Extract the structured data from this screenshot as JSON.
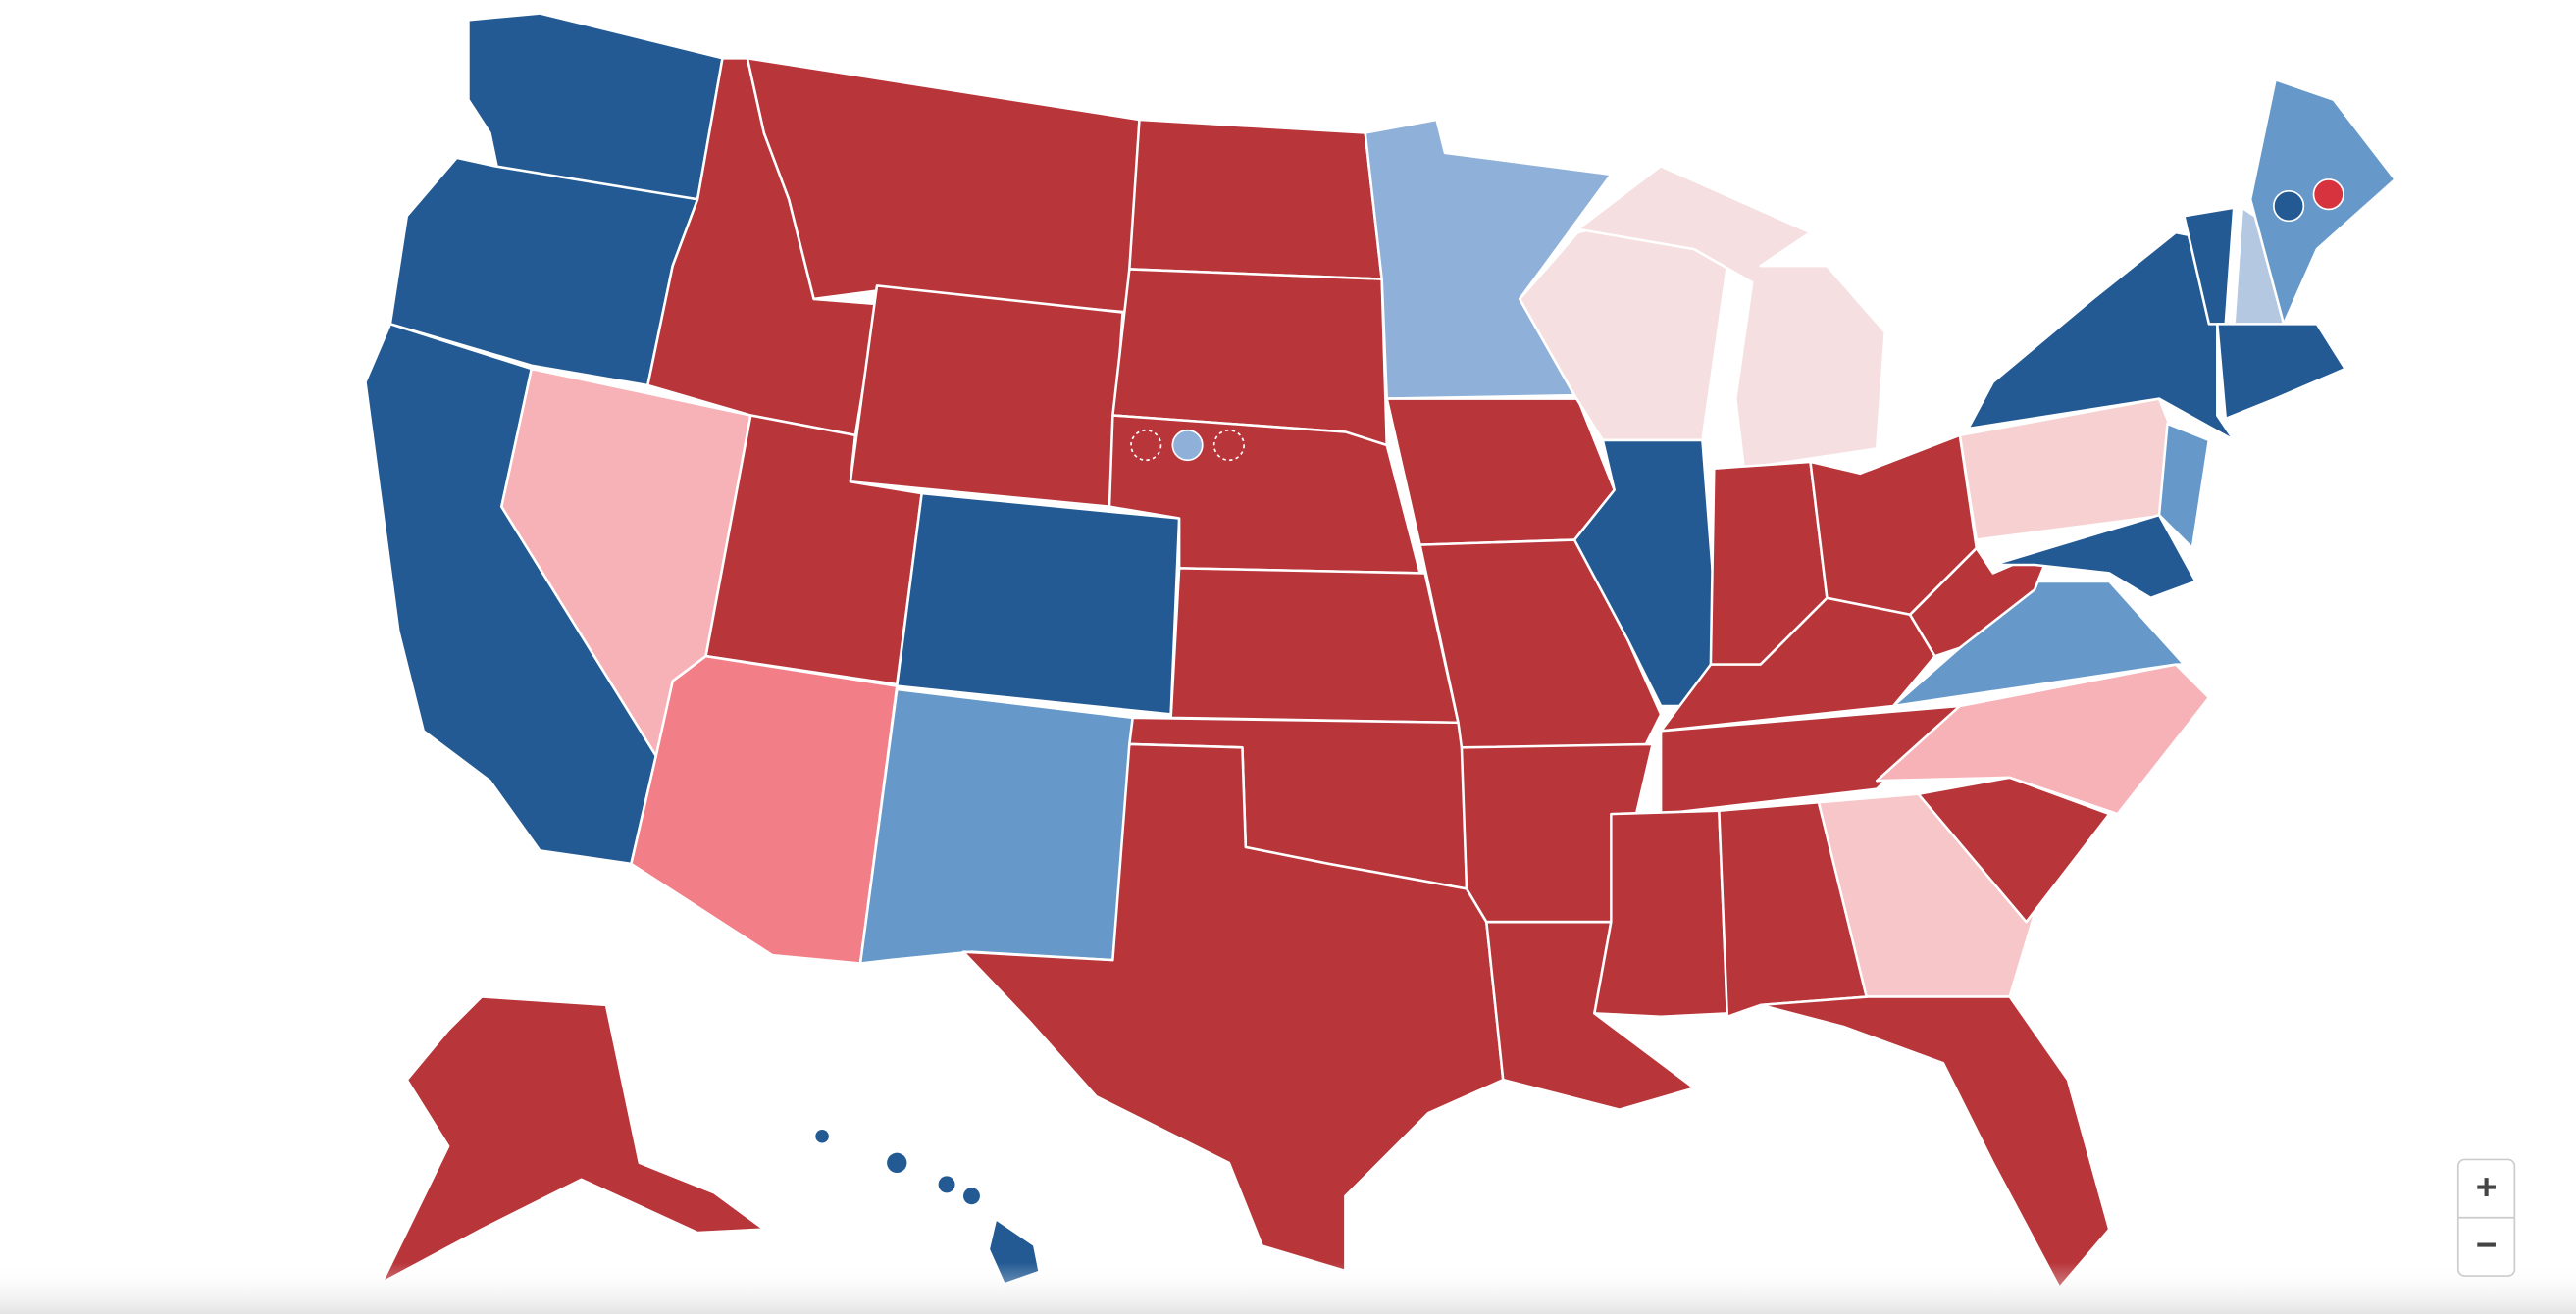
{
  "zoom_controls": {
    "zoom_in": "+",
    "zoom_out": "−"
  }
}
